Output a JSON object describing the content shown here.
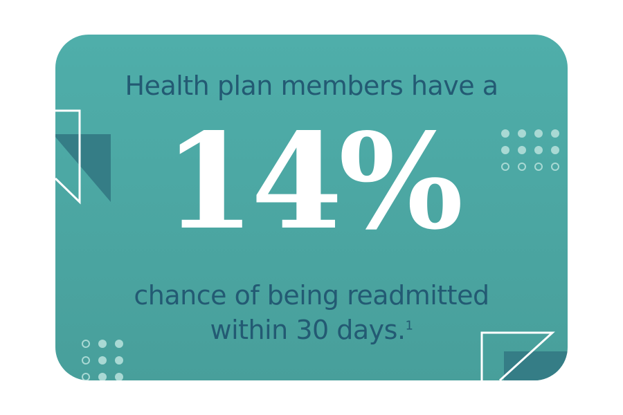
{
  "headline": "Health plan members have a",
  "stat": "14%",
  "subtext": {
    "line1": "chance of being readmitted",
    "line2": "within 30 days.",
    "footnote_marker": "1"
  },
  "colors": {
    "card_background": "#4faeaa",
    "heading_text": "#235a73",
    "stat_text": "#ffffff",
    "dark_shape": "#357d86",
    "dot": "#a9d9d4",
    "outline": "#ffffff"
  },
  "decorations": {
    "left_shape": "outline-pennant-with-dark-triangle",
    "right_shape": "outline-corner-triangle-with-dark-block",
    "top_right_dots": "dot-grid-3-rows",
    "bottom_left_dots": "dot-grid-3-rows"
  }
}
